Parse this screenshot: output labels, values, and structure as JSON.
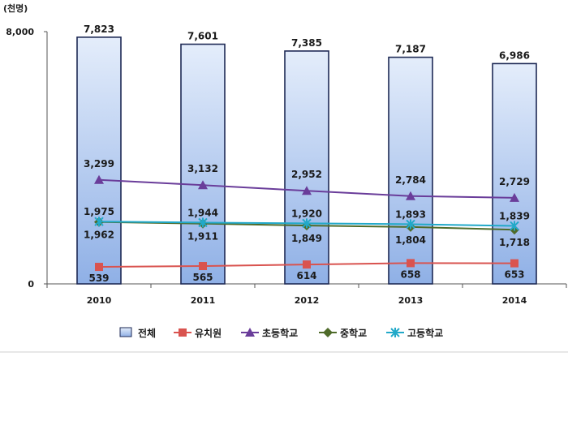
{
  "chart_data": {
    "type": "bar",
    "unit_label": "(천명)",
    "categories": [
      "2010",
      "2011",
      "2012",
      "2013",
      "2014"
    ],
    "ylim": [
      0,
      8000
    ],
    "y_ticks": [
      "0",
      "8,000"
    ],
    "grid": false,
    "legend_position": "bottom",
    "series": [
      {
        "name": "전체",
        "mark": "bar",
        "color": "#a9c4ef",
        "values": [
          7823,
          7601,
          7385,
          7187,
          6986
        ],
        "labels": [
          "7,823",
          "7,601",
          "7,385",
          "7,187",
          "6,986"
        ]
      },
      {
        "name": "유치원",
        "mark": "line",
        "marker": "square",
        "color": "#d9534f",
        "values": [
          539,
          565,
          614,
          658,
          653
        ],
        "labels": [
          "539",
          "565",
          "614",
          "658",
          "653"
        ]
      },
      {
        "name": "초등학교",
        "mark": "line",
        "marker": "triangle",
        "color": "#6a3d9a",
        "values": [
          3299,
          3132,
          2952,
          2784,
          2729
        ],
        "labels": [
          "3,299",
          "3,132",
          "2,952",
          "2,784",
          "2,729"
        ]
      },
      {
        "name": "중학교",
        "mark": "line",
        "marker": "diamond",
        "color": "#4f6b2a",
        "values": [
          1962,
          1911,
          1849,
          1804,
          1718
        ],
        "labels": [
          "1,962",
          "1,911",
          "1,849",
          "1,804",
          "1,718"
        ]
      },
      {
        "name": "고등학교",
        "mark": "line",
        "marker": "star",
        "color": "#22a9c9",
        "values": [
          1975,
          1944,
          1920,
          1893,
          1839
        ],
        "labels": [
          "1,975",
          "1,944",
          "1,920",
          "1,893",
          "1,839"
        ]
      }
    ]
  }
}
